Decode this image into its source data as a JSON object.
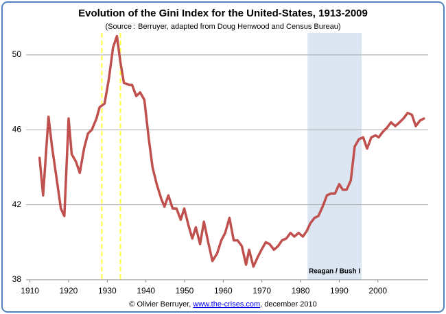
{
  "chart_data": {
    "type": "line",
    "title": "Evolution of the Gini Index for the United-States, 1913-2009",
    "subtitle": "(Source : Berruyer, adapted from Doug Henwood and Census Bureau)",
    "footer": {
      "prefix": "© Olivier Berruyer, ",
      "link": "www.the-crises.com",
      "suffix": ", december 2010"
    },
    "xlim": [
      1909,
      2013
    ],
    "xticks": [
      1910,
      1920,
      1930,
      1940,
      1950,
      1960,
      1970,
      1980,
      1990,
      2000
    ],
    "ylim": [
      38,
      51.5
    ],
    "yticks": [
      38,
      42,
      46,
      50
    ],
    "grid": true,
    "shaded_ranges": [
      {
        "label": "Reagan / Bush I",
        "range": [
          1981.8,
          1995.8
        ],
        "color": "#dce6f2"
      }
    ],
    "vlines": [
      {
        "x": 1928.6,
        "color": "#ffff40"
      },
      {
        "x": 1933.4,
        "color": "#ffff40"
      }
    ],
    "series": [
      {
        "color": "#c0504d",
        "x": [
          1912.5,
          1913.4,
          1914.8,
          1915.7,
          1916.9,
          1918,
          1918.9,
          1920,
          1920.8,
          1921.9,
          1922.9,
          1924,
          1925,
          1926,
          1927.2,
          1928,
          1929.3,
          1930.4,
          1931.5,
          1932.5,
          1933.4,
          1934.3,
          1935.7,
          1936.4,
          1937.5,
          1938.5,
          1939.6,
          1940.7,
          1941.7,
          1942.8,
          1944,
          1944.8,
          1945.8,
          1946.9,
          1947.9,
          1949,
          1949.9,
          1951,
          1952,
          1952.9,
          1954,
          1955,
          1956.1,
          1957.2,
          1958.4,
          1959.5,
          1960.5,
          1961.6,
          1962.7,
          1963.7,
          1964.8,
          1965.9,
          1966.7,
          1967.8,
          1968.9,
          1969.9,
          1971,
          1972,
          1973.1,
          1974.2,
          1975.2,
          1976.3,
          1977.4,
          1978.4,
          1979.5,
          1980.6,
          1981.6,
          1982.5,
          1983.6,
          1984.6,
          1985.7,
          1986.8,
          1987.8,
          1988.9,
          1990,
          1990.9,
          1991.9,
          1993,
          1994,
          1995.1,
          1996.2,
          1997.2,
          1998.3,
          1999.4,
          2000.2,
          2001.3,
          2002.3,
          2003.4,
          2004.5,
          2005.6,
          2006.6,
          2007.7,
          2008.8,
          2009.8,
          2010.9,
          2011.9
        ],
        "values": [
          44.5,
          42.5,
          46.7,
          45.1,
          43.4,
          41.8,
          41.4,
          46.6,
          44.7,
          44.3,
          43.7,
          45.0,
          45.8,
          46.0,
          46.6,
          47.2,
          47.4,
          48.7,
          50.4,
          51.0,
          49.6,
          48.5,
          48.4,
          48.4,
          47.8,
          48.0,
          47.6,
          45.6,
          44.0,
          43.1,
          42.3,
          41.9,
          42.5,
          41.8,
          41.8,
          41.2,
          41.8,
          40.9,
          40.2,
          40.8,
          39.9,
          41.1,
          40.0,
          39.0,
          39.4,
          40.1,
          40.5,
          41.3,
          40.1,
          40.1,
          39.8,
          38.8,
          39.6,
          38.7,
          39.2,
          39.6,
          40.0,
          39.9,
          39.6,
          39.8,
          40.1,
          40.2,
          40.5,
          40.3,
          40.5,
          40.3,
          40.6,
          41.0,
          41.3,
          41.4,
          41.9,
          42.5,
          42.6,
          42.6,
          43.1,
          42.8,
          42.8,
          43.3,
          45.1,
          45.5,
          45.6,
          45.0,
          45.6,
          45.7,
          45.6,
          45.9,
          46.1,
          46.4,
          46.2,
          46.4,
          46.6,
          46.9,
          46.8,
          46.2,
          46.5,
          46.6
        ]
      }
    ]
  }
}
